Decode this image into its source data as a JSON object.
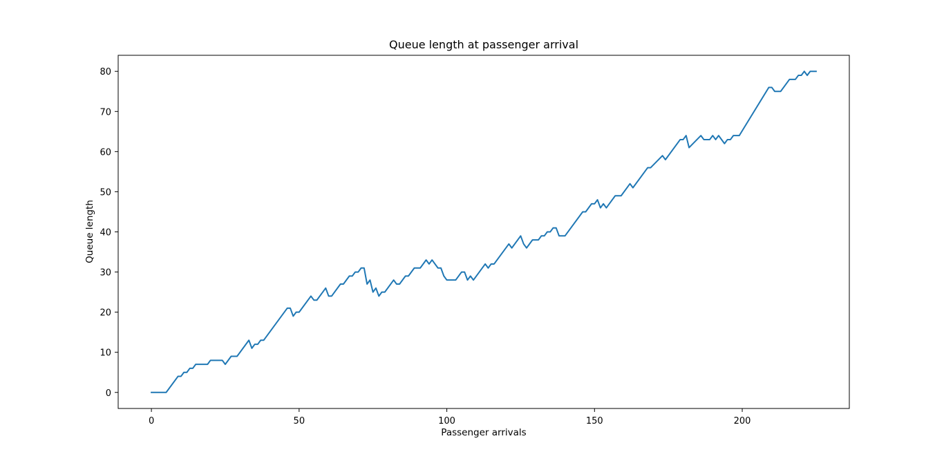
{
  "chart_data": {
    "type": "line",
    "title": "Queue length at passenger arrival",
    "xlabel": "Passenger arrivals",
    "ylabel": "Queue length",
    "xlim": [
      -11.25,
      236.25
    ],
    "ylim": [
      -4,
      84
    ],
    "xticks": [
      0,
      50,
      100,
      150,
      200
    ],
    "yticks": [
      0,
      10,
      20,
      30,
      40,
      50,
      60,
      70,
      80
    ],
    "grid": false,
    "line_color": "#1f77b4",
    "series": [
      {
        "points": [
          [
            0,
            0
          ],
          [
            5,
            0
          ],
          [
            9,
            4
          ],
          [
            10,
            4
          ],
          [
            11,
            5
          ],
          [
            12,
            5
          ],
          [
            13,
            6
          ],
          [
            14,
            6
          ],
          [
            15,
            7
          ],
          [
            19,
            7
          ],
          [
            20,
            8
          ],
          [
            24,
            8
          ],
          [
            25,
            7
          ],
          [
            27,
            9
          ],
          [
            29,
            9
          ],
          [
            33,
            13
          ],
          [
            34,
            11
          ],
          [
            35,
            12
          ],
          [
            36,
            12
          ],
          [
            37,
            13
          ],
          [
            38,
            13
          ],
          [
            46,
            21
          ],
          [
            47,
            21
          ],
          [
            48,
            19
          ],
          [
            49,
            20
          ],
          [
            50,
            20
          ],
          [
            54,
            24
          ],
          [
            55,
            23
          ],
          [
            56,
            23
          ],
          [
            59,
            26
          ],
          [
            60,
            24
          ],
          [
            61,
            24
          ],
          [
            64,
            27
          ],
          [
            65,
            27
          ],
          [
            67,
            29
          ],
          [
            68,
            29
          ],
          [
            69,
            30
          ],
          [
            70,
            30
          ],
          [
            71,
            31
          ],
          [
            72,
            31
          ],
          [
            73,
            27
          ],
          [
            74,
            28
          ],
          [
            75,
            25
          ],
          [
            76,
            26
          ],
          [
            77,
            24
          ],
          [
            78,
            25
          ],
          [
            79,
            25
          ],
          [
            82,
            28
          ],
          [
            83,
            27
          ],
          [
            84,
            27
          ],
          [
            86,
            29
          ],
          [
            87,
            29
          ],
          [
            89,
            31
          ],
          [
            91,
            31
          ],
          [
            93,
            33
          ],
          [
            94,
            32
          ],
          [
            95,
            33
          ],
          [
            97,
            31
          ],
          [
            98,
            31
          ],
          [
            99,
            29
          ],
          [
            100,
            28
          ],
          [
            103,
            28
          ],
          [
            105,
            30
          ],
          [
            106,
            30
          ],
          [
            107,
            28
          ],
          [
            108,
            29
          ],
          [
            109,
            28
          ],
          [
            113,
            32
          ],
          [
            114,
            31
          ],
          [
            115,
            32
          ],
          [
            116,
            32
          ],
          [
            121,
            37
          ],
          [
            122,
            36
          ],
          [
            125,
            39
          ],
          [
            126,
            37
          ],
          [
            127,
            36
          ],
          [
            129,
            38
          ],
          [
            131,
            38
          ],
          [
            132,
            39
          ],
          [
            133,
            39
          ],
          [
            134,
            40
          ],
          [
            135,
            40
          ],
          [
            136,
            41
          ],
          [
            137,
            41
          ],
          [
            138,
            39
          ],
          [
            140,
            39
          ],
          [
            146,
            45
          ],
          [
            147,
            45
          ],
          [
            149,
            47
          ],
          [
            150,
            47
          ],
          [
            151,
            48
          ],
          [
            152,
            46
          ],
          [
            153,
            47
          ],
          [
            154,
            46
          ],
          [
            157,
            49
          ],
          [
            159,
            49
          ],
          [
            162,
            52
          ],
          [
            163,
            51
          ],
          [
            168,
            56
          ],
          [
            169,
            56
          ],
          [
            173,
            59
          ],
          [
            174,
            58
          ],
          [
            179,
            63
          ],
          [
            180,
            63
          ],
          [
            181,
            64
          ],
          [
            182,
            61
          ],
          [
            186,
            64
          ],
          [
            187,
            63
          ],
          [
            189,
            63
          ],
          [
            190,
            64
          ],
          [
            191,
            63
          ],
          [
            192,
            64
          ],
          [
            194,
            62
          ],
          [
            195,
            63
          ],
          [
            196,
            63
          ],
          [
            197,
            64
          ],
          [
            199,
            64
          ],
          [
            209,
            76
          ],
          [
            210,
            76
          ],
          [
            211,
            75
          ],
          [
            213,
            75
          ],
          [
            216,
            78
          ],
          [
            218,
            78
          ],
          [
            219,
            79
          ],
          [
            220,
            79
          ],
          [
            221,
            80
          ],
          [
            222,
            79
          ],
          [
            223,
            80
          ],
          [
            225,
            80
          ]
        ]
      }
    ]
  }
}
